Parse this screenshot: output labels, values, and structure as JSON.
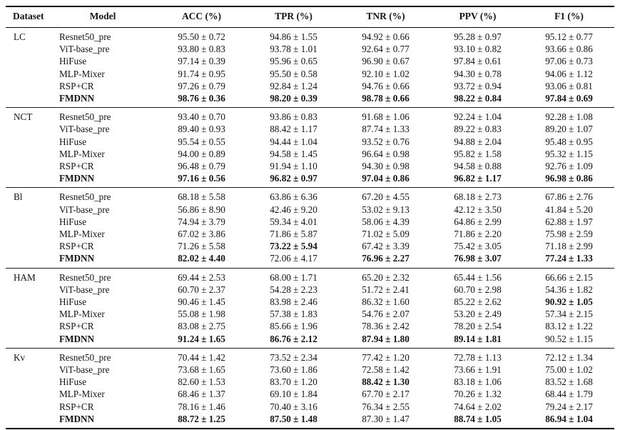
{
  "table": {
    "headers": [
      "Dataset",
      "Model",
      "ACC (%)",
      "TPR (%)",
      "TNR (%)",
      "PPV (%)",
      "F1 (%)"
    ],
    "plus_minus_separator": " ± ",
    "sections": [
      {
        "dataset": "LC",
        "rows": [
          {
            "model": "Resnet50_pre",
            "model_bold": false,
            "values": [
              "95.50 ± 0.72",
              "94.86 ± 1.55",
              "94.92 ± 0.66",
              "95.28 ± 0.97",
              "95.12 ± 0.77"
            ],
            "bold": [
              false,
              false,
              false,
              false,
              false
            ]
          },
          {
            "model": "ViT-base_pre",
            "model_bold": false,
            "values": [
              "93.80 ± 0.83",
              "93.78 ± 1.01",
              "92.64 ± 0.77",
              "93.10 ± 0.82",
              "93.66 ± 0.86"
            ],
            "bold": [
              false,
              false,
              false,
              false,
              false
            ]
          },
          {
            "model": "HiFuse",
            "model_bold": false,
            "values": [
              "97.14 ± 0.39",
              "95.96 ± 0.65",
              "96.90 ± 0.67",
              "97.84 ± 0.61",
              "97.06 ± 0.73"
            ],
            "bold": [
              false,
              false,
              false,
              false,
              false
            ]
          },
          {
            "model": "MLP-Mixer",
            "model_bold": false,
            "values": [
              "91.74 ± 0.95",
              "95.50 ± 0.58",
              "92.10 ± 1.02",
              "94.30 ± 0.78",
              "94.06 ± 1.12"
            ],
            "bold": [
              false,
              false,
              false,
              false,
              false
            ]
          },
          {
            "model": "RSP+CR",
            "model_bold": false,
            "values": [
              "97.26 ± 0.79",
              "92.84 ± 1.24",
              "94.76 ± 0.66",
              "93.72 ± 0.94",
              "93.06 ± 0.81"
            ],
            "bold": [
              false,
              false,
              false,
              false,
              false
            ]
          },
          {
            "model": "FMDNN",
            "model_bold": true,
            "values": [
              "98.76 ± 0.36",
              "98.20 ± 0.39",
              "98.78 ± 0.66",
              "98.22 ± 0.84",
              "97.84 ± 0.69"
            ],
            "bold": [
              true,
              true,
              true,
              true,
              true
            ]
          }
        ]
      },
      {
        "dataset": "NCT",
        "rows": [
          {
            "model": "Resnet50_pre",
            "model_bold": false,
            "values": [
              "93.40 ± 0.70",
              "93.86 ± 0.83",
              "91.68 ± 1.06",
              "92.24 ± 1.04",
              "92.28 ± 1.08"
            ],
            "bold": [
              false,
              false,
              false,
              false,
              false
            ]
          },
          {
            "model": "ViT-base_pre",
            "model_bold": false,
            "values": [
              "89.40 ± 0.93",
              "88.42 ± 1.17",
              "87.74 ± 1.33",
              "89.22 ± 0.83",
              "89.20 ± 1.07"
            ],
            "bold": [
              false,
              false,
              false,
              false,
              false
            ]
          },
          {
            "model": "HiFuse",
            "model_bold": false,
            "values": [
              "95.54 ± 0.55",
              "94.44 ± 1.04",
              "93.52 ± 0.76",
              "94.88 ± 2.04",
              "95.48 ± 0.95"
            ],
            "bold": [
              false,
              false,
              false,
              false,
              false
            ]
          },
          {
            "model": "MLP-Mixer",
            "model_bold": false,
            "values": [
              "94.00 ± 0.89",
              "94.58 ± 1.45",
              "96.64 ± 0.98",
              "95.82 ± 1.58",
              "95.32 ± 1.15"
            ],
            "bold": [
              false,
              false,
              false,
              false,
              false
            ]
          },
          {
            "model": "RSP+CR",
            "model_bold": false,
            "values": [
              "96.48 ± 0.79",
              "91.94 ± 1.10",
              "94.30 ± 0.98",
              "94.58 ± 0.88",
              "92.76 ± 1.09"
            ],
            "bold": [
              false,
              false,
              false,
              false,
              false
            ]
          },
          {
            "model": "FMDNN",
            "model_bold": true,
            "values": [
              "97.16 ± 0.56",
              "96.82 ± 0.97",
              "97.04 ± 0.86",
              "96.82 ± 1.17",
              "96.98 ± 0.86"
            ],
            "bold": [
              true,
              true,
              true,
              true,
              true
            ]
          }
        ]
      },
      {
        "dataset": "Bl",
        "rows": [
          {
            "model": "Resnet50_pre",
            "model_bold": false,
            "values": [
              "68.18 ± 5.58",
              "63.86 ± 6.36",
              "67.20 ± 4.55",
              "68.18 ± 2.73",
              "67.86 ± 2.76"
            ],
            "bold": [
              false,
              false,
              false,
              false,
              false
            ]
          },
          {
            "model": "ViT-base_pre",
            "model_bold": false,
            "values": [
              "56.86 ± 8.90",
              "42.46 ± 9.20",
              "53.02 ± 9.13",
              "42.12 ± 3.50",
              "41.84 ± 5.20"
            ],
            "bold": [
              false,
              false,
              false,
              false,
              false
            ]
          },
          {
            "model": "HiFuse",
            "model_bold": false,
            "values": [
              "74.94 ± 3.79",
              "59.34 ± 4.01",
              "58.06 ± 4.39",
              "64.86 ± 2.99",
              "62.88 ± 1.97"
            ],
            "bold": [
              false,
              false,
              false,
              false,
              false
            ]
          },
          {
            "model": "MLP-Mixer",
            "model_bold": false,
            "values": [
              "67.02 ± 3.86",
              "71.86 ± 5.87",
              "71.02 ± 5.09",
              "71.86 ± 2.20",
              "75.98 ± 2.59"
            ],
            "bold": [
              false,
              false,
              false,
              false,
              false
            ]
          },
          {
            "model": "RSP+CR",
            "model_bold": false,
            "values": [
              "71.26 ± 5.58",
              "73.22 ± 5.94",
              "67.42 ± 3.39",
              "75.42 ± 3.05",
              "71.18 ± 2.99"
            ],
            "bold": [
              false,
              true,
              false,
              false,
              false
            ]
          },
          {
            "model": "FMDNN",
            "model_bold": true,
            "values": [
              "82.02 ± 4.40",
              "72.06 ± 4.17",
              "76.96 ± 2.27",
              "76.98 ± 3.07",
              "77.24 ± 1.33"
            ],
            "bold": [
              true,
              false,
              true,
              true,
              true
            ]
          }
        ]
      },
      {
        "dataset": "HAM",
        "rows": [
          {
            "model": "Resnet50_pre",
            "model_bold": false,
            "values": [
              "69.44 ± 2.53",
              "68.00 ± 1.71",
              "65.20 ± 2.32",
              "65.44 ± 1.56",
              "66.66 ± 2.15"
            ],
            "bold": [
              false,
              false,
              false,
              false,
              false
            ]
          },
          {
            "model": "ViT-base_pre",
            "model_bold": false,
            "values": [
              "60.70 ± 2.37",
              "54.28 ± 2.23",
              "51.72 ± 2.41",
              "60.70 ± 2.98",
              "54.36 ± 1.82"
            ],
            "bold": [
              false,
              false,
              false,
              false,
              false
            ]
          },
          {
            "model": "HiFuse",
            "model_bold": false,
            "values": [
              "90.46 ± 1.45",
              "83.98 ± 2.46",
              "86.32 ± 1.60",
              "85.22 ± 2.62",
              "90.92 ± 1.05"
            ],
            "bold": [
              false,
              false,
              false,
              false,
              true
            ]
          },
          {
            "model": "MLP-Mixer",
            "model_bold": false,
            "values": [
              "55.08 ± 1.98",
              "57.38 ± 1.83",
              "54.76 ± 2.07",
              "53.20 ± 2.49",
              "57.34 ± 2.15"
            ],
            "bold": [
              false,
              false,
              false,
              false,
              false
            ]
          },
          {
            "model": "RSP+CR",
            "model_bold": false,
            "values": [
              "83.08 ± 2.75",
              "85.66 ± 1.96",
              "78.36 ± 2.42",
              "78.20 ± 2.54",
              "83.12 ± 1.22"
            ],
            "bold": [
              false,
              false,
              false,
              false,
              false
            ]
          },
          {
            "model": "FMDNN",
            "model_bold": true,
            "values": [
              "91.24 ± 1.65",
              "86.76 ± 2.12",
              "87.94 ± 1.80",
              "89.14 ± 1.81",
              "90.52 ± 1.15"
            ],
            "bold": [
              true,
              true,
              true,
              true,
              false
            ]
          }
        ]
      },
      {
        "dataset": "Kv",
        "rows": [
          {
            "model": "Resnet50_pre",
            "model_bold": false,
            "values": [
              "70.44 ± 1.42",
              "73.52 ± 2.34",
              "77.42 ± 1.20",
              "72.78 ± 1.13",
              "72.12 ± 1.34"
            ],
            "bold": [
              false,
              false,
              false,
              false,
              false
            ]
          },
          {
            "model": "ViT-base_pre",
            "model_bold": false,
            "values": [
              "73.68 ± 1.65",
              "73.60 ± 1.86",
              "72.58 ± 1.42",
              "73.66 ± 1.91",
              "75.00 ± 1.02"
            ],
            "bold": [
              false,
              false,
              false,
              false,
              false
            ]
          },
          {
            "model": "HiFuse",
            "model_bold": false,
            "values": [
              "82.60 ± 1.53",
              "83.70 ± 1.20",
              "88.42 ± 1.30",
              "83.18 ± 1.06",
              "83.52 ± 1.68"
            ],
            "bold": [
              false,
              false,
              true,
              false,
              false
            ]
          },
          {
            "model": "MLP-Mixer",
            "model_bold": false,
            "values": [
              "68.46 ± 1.37",
              "69.10 ± 1.84",
              "67.70 ± 2.17",
              "70.26 ± 1.32",
              "68.44 ± 1.79"
            ],
            "bold": [
              false,
              false,
              false,
              false,
              false
            ]
          },
          {
            "model": "RSP+CR",
            "model_bold": false,
            "values": [
              "78.16 ± 1.46",
              "70.40 ± 3.16",
              "76.34 ± 2.55",
              "74.64 ± 2.02",
              "79.24 ± 2.17"
            ],
            "bold": [
              false,
              false,
              false,
              false,
              false
            ]
          },
          {
            "model": "FMDNN",
            "model_bold": true,
            "values": [
              "88.72 ± 1.25",
              "87.50 ± 1.48",
              "87.30 ± 1.47",
              "88.74 ± 1.05",
              "86.94 ± 1.04"
            ],
            "bold": [
              true,
              true,
              false,
              true,
              true
            ]
          }
        ]
      }
    ]
  },
  "colors": {
    "text": "#141414",
    "rule": "#000000",
    "background": "#ffffff"
  }
}
